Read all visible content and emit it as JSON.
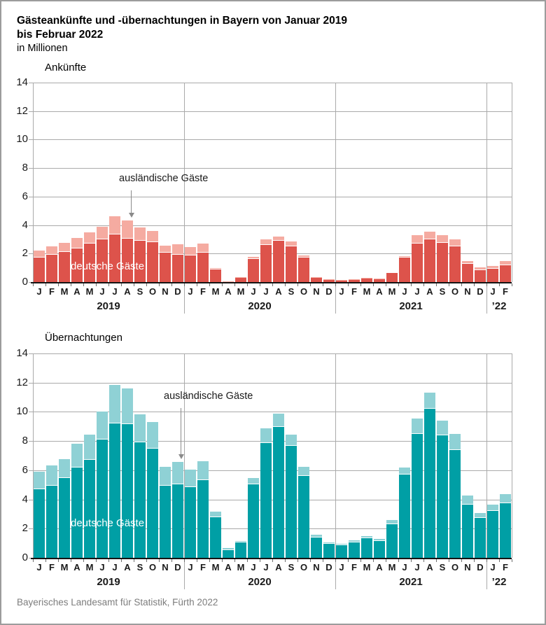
{
  "title_line1": "Gästeankünfte und -übernachtungen in Bayern von Januar 2019",
  "title_line2": "bis Februar 2022",
  "subtitle": "in Millionen",
  "footer": "Bayerisches Landesamt für Statistik, Fürth 2022",
  "chart_data": [
    {
      "type": "bar",
      "stacked": true,
      "title": "Ankünfte",
      "unit": "Millionen",
      "ylim": [
        0,
        14
      ],
      "yticks": [
        0,
        2,
        4,
        6,
        8,
        10,
        12,
        14
      ],
      "grid": true,
      "months": [
        "J",
        "F",
        "M",
        "A",
        "M",
        "J",
        "J",
        "A",
        "S",
        "O",
        "N",
        "D",
        "J",
        "F",
        "M",
        "A",
        "M",
        "J",
        "J",
        "A",
        "S",
        "O",
        "N",
        "D",
        "J",
        "F",
        "M",
        "A",
        "M",
        "J",
        "J",
        "A",
        "S",
        "O",
        "N",
        "D",
        "J",
        "F"
      ],
      "year_groups": [
        {
          "label": "2019",
          "start": 0,
          "months": 12
        },
        {
          "label": "2020",
          "start": 12,
          "months": 12
        },
        {
          "label": "2021",
          "start": 24,
          "months": 12
        },
        {
          "label": "’22",
          "start": 36,
          "months": 2
        }
      ],
      "series": [
        {
          "name": "deutsche Gäste",
          "color": "#dd534b",
          "values": [
            1.7,
            1.9,
            2.1,
            2.35,
            2.7,
            3.0,
            3.35,
            3.05,
            2.9,
            2.8,
            2.05,
            1.9,
            1.85,
            2.05,
            0.9,
            0.05,
            0.3,
            1.6,
            2.6,
            2.9,
            2.5,
            1.7,
            0.28,
            0.17,
            0.13,
            0.18,
            0.27,
            0.21,
            0.62,
            1.7,
            2.7,
            3.0,
            2.75,
            2.5,
            1.3,
            0.85,
            0.95,
            1.2
          ]
        },
        {
          "name": "ausländische Gäste",
          "color": "#f5aba1",
          "values": [
            0.5,
            0.6,
            0.65,
            0.75,
            0.8,
            0.9,
            1.25,
            1.25,
            0.95,
            0.8,
            0.5,
            0.75,
            0.6,
            0.65,
            0.1,
            0.02,
            0.05,
            0.15,
            0.4,
            0.3,
            0.35,
            0.15,
            0.05,
            0.03,
            0.02,
            0.03,
            0.04,
            0.04,
            0.08,
            0.1,
            0.6,
            0.55,
            0.55,
            0.5,
            0.15,
            0.2,
            0.2,
            0.25
          ]
        }
      ],
      "annotations": {
        "inner_series_label": "deutsche Gäste",
        "arrow_series_label": "ausländische Gäste",
        "arrow_points_to_month_index": 7
      }
    },
    {
      "type": "bar",
      "stacked": true,
      "title": "Übernachtungen",
      "unit": "Millionen",
      "ylim": [
        0,
        14
      ],
      "yticks": [
        0,
        2,
        4,
        6,
        8,
        10,
        12,
        14
      ],
      "grid": true,
      "months": [
        "J",
        "F",
        "M",
        "A",
        "M",
        "J",
        "J",
        "A",
        "S",
        "O",
        "N",
        "D",
        "J",
        "F",
        "M",
        "A",
        "M",
        "J",
        "J",
        "A",
        "S",
        "O",
        "N",
        "D",
        "J",
        "F",
        "M",
        "A",
        "M",
        "J",
        "J",
        "A",
        "S",
        "O",
        "N",
        "D",
        "J",
        "F"
      ],
      "year_groups": [
        {
          "label": "2019",
          "start": 0,
          "months": 12
        },
        {
          "label": "2020",
          "start": 12,
          "months": 12
        },
        {
          "label": "2021",
          "start": 24,
          "months": 12
        },
        {
          "label": "’22",
          "start": 36,
          "months": 2
        }
      ],
      "series": [
        {
          "name": "deutsche Gäste",
          "color": "#009fa5",
          "values": [
            4.7,
            4.95,
            5.45,
            6.2,
            6.7,
            8.1,
            9.2,
            9.15,
            7.9,
            7.5,
            4.95,
            5.05,
            4.85,
            5.3,
            2.8,
            0.55,
            1.05,
            5.05,
            7.85,
            8.95,
            7.65,
            5.6,
            1.4,
            0.95,
            0.85,
            1.05,
            1.35,
            1.15,
            2.3,
            5.7,
            8.5,
            10.2,
            8.4,
            7.4,
            3.65,
            2.75,
            3.2,
            3.75
          ]
        },
        {
          "name": "ausländische Gäste",
          "color": "#8fd1d5",
          "values": [
            1.2,
            1.4,
            1.3,
            1.6,
            1.75,
            1.9,
            2.65,
            2.45,
            1.95,
            1.8,
            1.3,
            1.5,
            1.2,
            1.3,
            0.35,
            0.1,
            0.1,
            0.4,
            1.0,
            0.95,
            0.8,
            0.65,
            0.2,
            0.1,
            0.1,
            0.15,
            0.15,
            0.15,
            0.3,
            0.5,
            1.05,
            1.1,
            1.0,
            1.1,
            0.6,
            0.3,
            0.45,
            0.6
          ]
        }
      ],
      "annotations": {
        "inner_series_label": "deutsche Gäste",
        "arrow_series_label": "ausländische Gäste",
        "arrow_points_to_month_index": 11
      }
    }
  ]
}
